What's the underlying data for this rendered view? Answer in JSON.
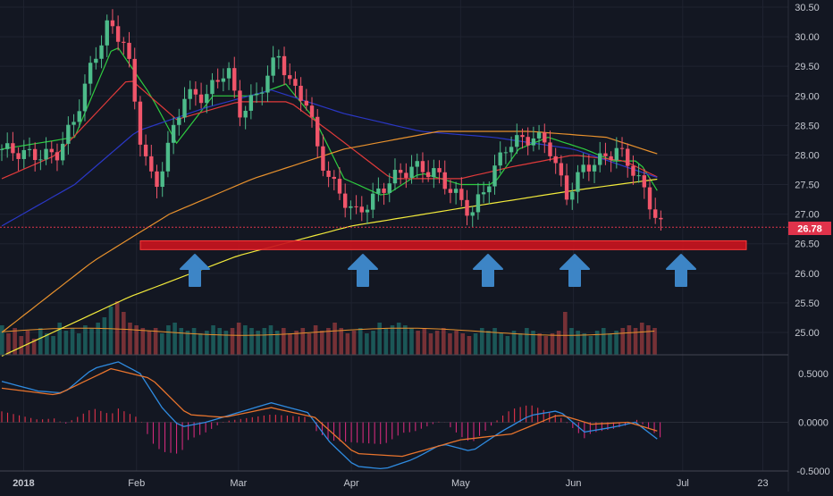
{
  "chart_data": [
    {
      "type": "candlestick",
      "price_axis": {
        "ticks": [
          "30.50",
          "30.00",
          "29.50",
          "29.00",
          "28.50",
          "28.00",
          "27.50",
          "27.00",
          "26.50",
          "26.00",
          "25.50",
          "25.00"
        ],
        "range": [
          24.7,
          30.6
        ]
      },
      "last_price_label": "26.78",
      "last_price": 26.78,
      "support_zone": {
        "low": 26.4,
        "high": 26.55
      },
      "time_axis": {
        "labels": [
          "2018",
          "Feb",
          "Mar",
          "Apr",
          "May",
          "Jun",
          "Jul",
          "23"
        ]
      },
      "support_arrows": {
        "count": 5,
        "direction": "up"
      },
      "price_path": [
        [
          "2017-12-26",
          28.1
        ],
        [
          "2018-01-03",
          28.0
        ],
        [
          "2018-01-10",
          28.0
        ],
        [
          "2018-01-15",
          28.6
        ],
        [
          "2018-01-19",
          29.4
        ],
        [
          "2018-01-24",
          30.2
        ],
        [
          "2018-01-29",
          29.9
        ],
        [
          "2018-02-02",
          28.3
        ],
        [
          "2018-02-06",
          27.4
        ],
        [
          "2018-02-09",
          28.0
        ],
        [
          "2018-02-14",
          29.0
        ],
        [
          "2018-02-20",
          29.0
        ],
        [
          "2018-02-26",
          29.5
        ],
        [
          "2018-03-01",
          28.7
        ],
        [
          "2018-03-06",
          29.0
        ],
        [
          "2018-03-12",
          29.7
        ],
        [
          "2018-03-16",
          29.1
        ],
        [
          "2018-03-20",
          28.9
        ],
        [
          "2018-03-23",
          28.0
        ],
        [
          "2018-03-27",
          27.5
        ],
        [
          "2018-04-02",
          27.0
        ],
        [
          "2018-04-06",
          27.2
        ],
        [
          "2018-04-12",
          27.6
        ],
        [
          "2018-04-18",
          27.8
        ],
        [
          "2018-04-24",
          27.7
        ],
        [
          "2018-04-30",
          27.3
        ],
        [
          "2018-05-04",
          27.0
        ],
        [
          "2018-05-09",
          27.6
        ],
        [
          "2018-05-14",
          28.2
        ],
        [
          "2018-05-21",
          28.3
        ],
        [
          "2018-05-25",
          28.2
        ],
        [
          "2018-05-30",
          27.3
        ],
        [
          "2018-06-04",
          27.8
        ],
        [
          "2018-06-08",
          27.9
        ],
        [
          "2018-06-13",
          28.1
        ],
        [
          "2018-06-18",
          27.7
        ],
        [
          "2018-06-21",
          27.3
        ],
        [
          "2018-06-25",
          26.8
        ]
      ],
      "moving_averages": [
        {
          "color": "#2ecc40",
          "points": [
            [
              "2017-12-26",
              28.1
            ],
            [
              "2018-01-15",
              28.3
            ],
            [
              "2018-01-26",
              29.9
            ],
            [
              "2018-02-05",
              29.0
            ],
            [
              "2018-02-12",
              28.2
            ],
            [
              "2018-02-22",
              29.0
            ],
            [
              "2018-03-05",
              29.0
            ],
            [
              "2018-03-14",
              29.2
            ],
            [
              "2018-03-22",
              28.6
            ],
            [
              "2018-03-30",
              27.6
            ],
            [
              "2018-04-10",
              27.3
            ],
            [
              "2018-04-20",
              27.7
            ],
            [
              "2018-05-01",
              27.5
            ],
            [
              "2018-05-10",
              27.5
            ],
            [
              "2018-05-17",
              28.1
            ],
            [
              "2018-05-25",
              28.3
            ],
            [
              "2018-06-04",
              28.1
            ],
            [
              "2018-06-12",
              27.9
            ],
            [
              "2018-06-19",
              27.9
            ],
            [
              "2018-06-25",
              27.3
            ]
          ]
        },
        {
          "color": "#e03a3a",
          "points": [
            [
              "2017-12-26",
              27.6
            ],
            [
              "2018-01-10",
              28.0
            ],
            [
              "2018-01-30",
              29.3
            ],
            [
              "2018-02-12",
              28.6
            ],
            [
              "2018-03-01",
              28.9
            ],
            [
              "2018-03-15",
              28.9
            ],
            [
              "2018-03-26",
              28.4
            ],
            [
              "2018-04-12",
              27.6
            ],
            [
              "2018-05-01",
              27.6
            ],
            [
              "2018-05-15",
              27.8
            ],
            [
              "2018-06-01",
              28.0
            ],
            [
              "2018-06-15",
              27.9
            ],
            [
              "2018-06-25",
              27.6
            ]
          ]
        },
        {
          "color": "#2a37c4",
          "points": [
            [
              "2017-12-26",
              26.8
            ],
            [
              "2018-01-15",
              27.5
            ],
            [
              "2018-02-01",
              28.4
            ],
            [
              "2018-02-20",
              28.8
            ],
            [
              "2018-03-10",
              29.1
            ],
            [
              "2018-03-30",
              28.7
            ],
            [
              "2018-04-20",
              28.4
            ],
            [
              "2018-05-10",
              28.3
            ],
            [
              "2018-06-01",
              28.1
            ],
            [
              "2018-06-25",
              27.6
            ]
          ]
        },
        {
          "color": "#e8912d",
          "points": [
            [
              "2017-12-26",
              25.0
            ],
            [
              "2018-01-20",
              26.2
            ],
            [
              "2018-02-10",
              27.0
            ],
            [
              "2018-03-05",
              27.6
            ],
            [
              "2018-03-30",
              28.1
            ],
            [
              "2018-04-25",
              28.4
            ],
            [
              "2018-05-20",
              28.4
            ],
            [
              "2018-06-10",
              28.3
            ],
            [
              "2018-06-25",
              28.0
            ]
          ]
        },
        {
          "color": "#f2ea3b",
          "points": [
            [
              "2017-12-26",
              24.6
            ],
            [
              "2018-01-30",
              25.6
            ],
            [
              "2018-03-01",
              26.3
            ],
            [
              "2018-04-01",
              26.8
            ],
            [
              "2018-05-01",
              27.1
            ],
            [
              "2018-06-01",
              27.4
            ],
            [
              "2018-06-25",
              27.6
            ]
          ]
        }
      ]
    },
    {
      "type": "bar",
      "series": [
        {
          "values_relative": [
            0.55,
            0.4,
            0.5,
            0.35,
            0.45,
            0.3,
            0.5,
            0.4,
            0.35,
            0.6,
            0.45,
            0.5,
            0.4,
            0.55,
            0.5,
            0.6,
            0.7,
            0.9,
            1.0,
            0.8,
            0.6,
            0.55,
            0.5,
            0.45,
            0.5,
            0.4,
            0.55,
            0.6,
            0.5,
            0.45,
            0.5,
            0.4,
            0.45,
            0.55,
            0.5,
            0.45,
            0.5,
            0.6,
            0.55,
            0.5,
            0.45,
            0.5,
            0.55,
            0.45,
            0.5,
            0.4,
            0.45,
            0.5,
            0.4,
            0.55,
            0.45,
            0.5,
            0.6,
            0.5,
            0.4,
            0.45,
            0.5,
            0.4,
            0.45,
            0.6,
            0.5,
            0.55,
            0.6,
            0.55,
            0.5,
            0.45,
            0.5,
            0.4,
            0.45,
            0.5,
            0.4,
            0.45,
            0.4,
            0.35,
            0.4,
            0.5,
            0.45,
            0.5,
            0.4,
            0.35,
            0.45,
            0.4,
            0.5,
            0.45,
            0.4,
            0.35,
            0.4,
            0.45,
            0.8,
            0.5,
            0.45,
            0.4,
            0.35,
            0.45,
            0.5,
            0.4,
            0.45,
            0.5,
            0.55,
            0.5,
            0.6,
            0.55,
            0.5
          ]
        }
      ]
    },
    {
      "type": "line",
      "y_axis": {
        "ticks": [
          "0.5000",
          "0.0000",
          "-0.5000"
        ],
        "range": [
          -0.57,
          0.68
        ]
      },
      "macd_line": [
        [
          "2017-12-26",
          0.42
        ],
        [
          "2018-01-05",
          0.32
        ],
        [
          "2018-01-12",
          0.3
        ],
        [
          "2018-01-20",
          0.55
        ],
        [
          "2018-01-27",
          0.62
        ],
        [
          "2018-02-02",
          0.5
        ],
        [
          "2018-02-08",
          0.15
        ],
        [
          "2018-02-13",
          -0.05
        ],
        [
          "2018-02-20",
          0.0
        ],
        [
          "2018-03-01",
          0.1
        ],
        [
          "2018-03-10",
          0.2
        ],
        [
          "2018-03-20",
          0.1
        ],
        [
          "2018-03-26",
          -0.2
        ],
        [
          "2018-04-02",
          -0.45
        ],
        [
          "2018-04-10",
          -0.48
        ],
        [
          "2018-04-18",
          -0.38
        ],
        [
          "2018-04-26",
          -0.22
        ],
        [
          "2018-05-04",
          -0.3
        ],
        [
          "2018-05-12",
          -0.1
        ],
        [
          "2018-05-20",
          0.07
        ],
        [
          "2018-05-28",
          0.12
        ],
        [
          "2018-06-04",
          -0.1
        ],
        [
          "2018-06-12",
          -0.05
        ],
        [
          "2018-06-18",
          0.0
        ],
        [
          "2018-06-25",
          -0.2
        ]
      ],
      "signal_line": [
        [
          "2017-12-26",
          0.35
        ],
        [
          "2018-01-10",
          0.28
        ],
        [
          "2018-01-25",
          0.55
        ],
        [
          "2018-02-05",
          0.45
        ],
        [
          "2018-02-15",
          0.08
        ],
        [
          "2018-02-25",
          0.05
        ],
        [
          "2018-03-10",
          0.15
        ],
        [
          "2018-03-22",
          0.05
        ],
        [
          "2018-04-02",
          -0.32
        ],
        [
          "2018-04-15",
          -0.35
        ],
        [
          "2018-05-01",
          -0.18
        ],
        [
          "2018-05-15",
          -0.12
        ],
        [
          "2018-05-28",
          0.08
        ],
        [
          "2018-06-06",
          -0.02
        ],
        [
          "2018-06-16",
          0.0
        ],
        [
          "2018-06-25",
          -0.1
        ]
      ]
    }
  ]
}
